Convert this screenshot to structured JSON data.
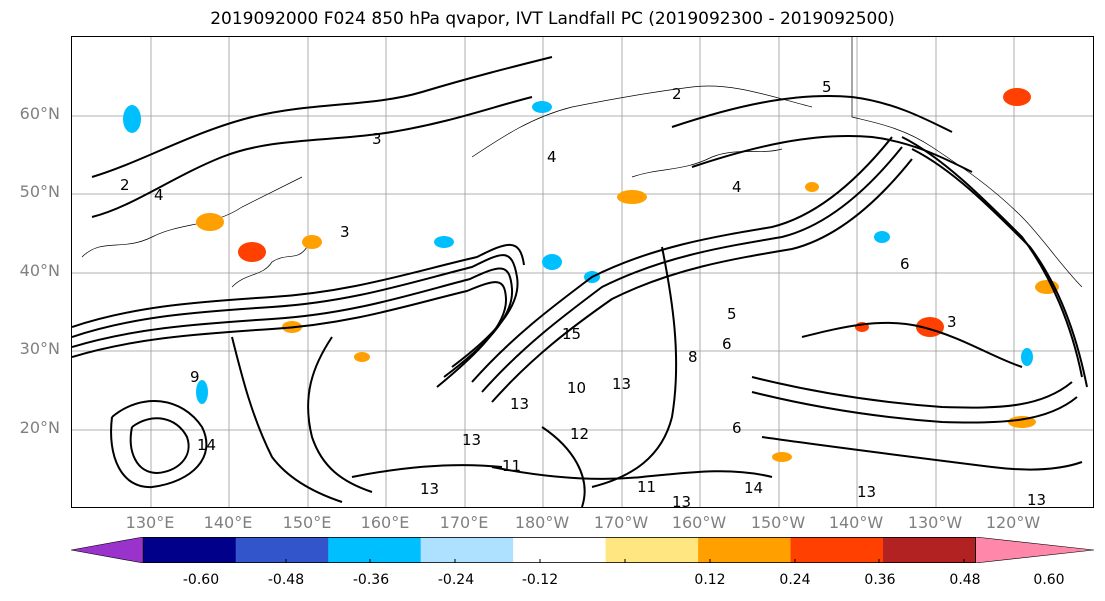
{
  "title": "2019092000 F024 850 hPa qvapor, IVT Landfall PC (2019092300 - 2019092500)",
  "latitude_labels": [
    "60°N",
    "50°N",
    "40°N",
    "30°N",
    "20°N"
  ],
  "longitude_labels": [
    "130°E",
    "140°E",
    "150°E",
    "160°E",
    "170°E",
    "180°W",
    "170°W",
    "160°W",
    "150°W",
    "140°W",
    "130°W",
    "120°W"
  ],
  "contour_labels": [
    "4",
    "3",
    "2",
    "4",
    "5",
    "3",
    "4",
    "2",
    "3",
    "6",
    "5",
    "15",
    "10",
    "13",
    "13",
    "12",
    "13",
    "11",
    "14",
    "13",
    "11",
    "13",
    "14",
    "13",
    "13",
    "6",
    "8",
    "9",
    "6"
  ],
  "colorbar": {
    "tick_labels": [
      "-0.60",
      "-0.48",
      "-0.36",
      "-0.24",
      "-0.12",
      "0.12",
      "0.24",
      "0.36",
      "0.48",
      "0.60"
    ],
    "colors": [
      "#9933cc",
      "#00008b",
      "#3355cc",
      "#00bfff",
      "#aee0ff",
      "#ffffff",
      "#ffe680",
      "#ffa000",
      "#ff4000",
      "#b22222",
      "#ff88aa"
    ]
  }
}
